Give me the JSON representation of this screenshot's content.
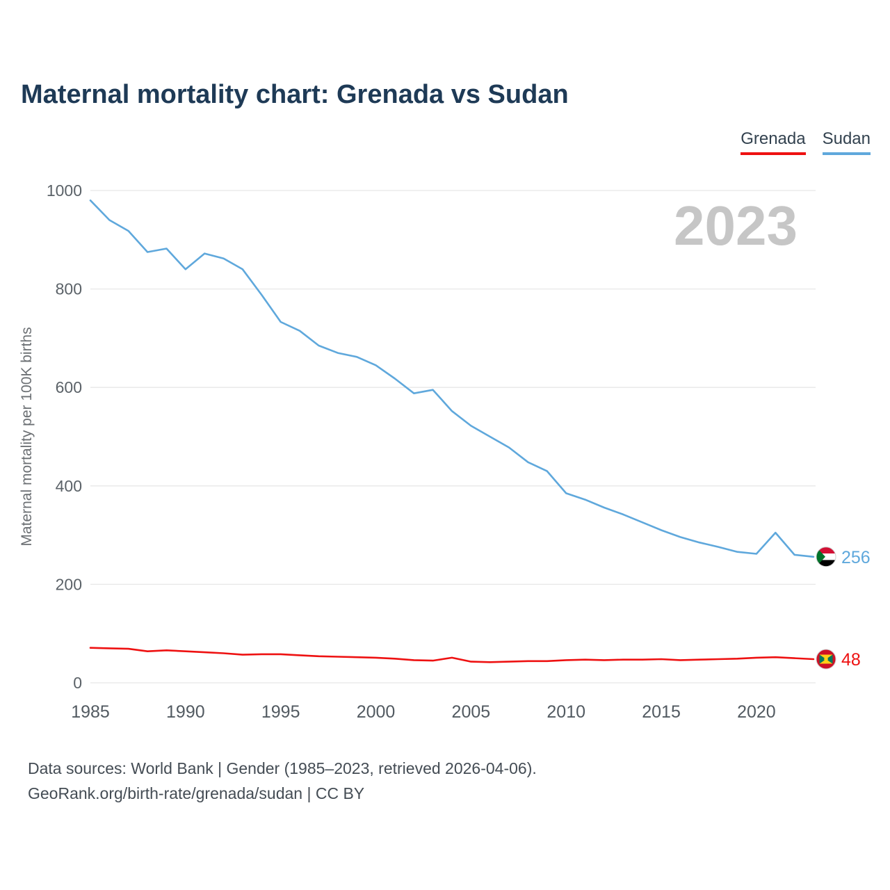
{
  "header": {
    "title": "Maternal mortality chart: Grenada vs Sudan"
  },
  "legend": [
    {
      "label": "Grenada",
      "color": "#ee1111"
    },
    {
      "label": "Sudan",
      "color": "#5fa8dc"
    }
  ],
  "watermark": "2023",
  "chart_data": {
    "type": "line",
    "title": "Maternal mortality chart: Grenada vs Sudan",
    "xlabel": "",
    "ylabel": "Maternal mortality per 100K births",
    "ylim": [
      0,
      1000
    ],
    "yticks": [
      0,
      200,
      400,
      600,
      800,
      1000
    ],
    "xticks": [
      1985,
      1990,
      1995,
      2000,
      2005,
      2010,
      2015,
      2020
    ],
    "grid": "horizontal",
    "legend_position": "top-right",
    "x": [
      1985,
      1986,
      1987,
      1988,
      1989,
      1990,
      1991,
      1992,
      1993,
      1994,
      1995,
      1996,
      1997,
      1998,
      1999,
      2000,
      2001,
      2002,
      2003,
      2004,
      2005,
      2006,
      2007,
      2008,
      2009,
      2010,
      2011,
      2012,
      2013,
      2014,
      2015,
      2016,
      2017,
      2018,
      2019,
      2020,
      2021,
      2022,
      2023
    ],
    "series": [
      {
        "name": "Grenada",
        "color": "#ee1111",
        "end_label": "48",
        "values": [
          71,
          70,
          69,
          64,
          66,
          64,
          62,
          60,
          57,
          58,
          58,
          56,
          54,
          53,
          52,
          51,
          49,
          46,
          45,
          51,
          43,
          42,
          43,
          44,
          44,
          46,
          47,
          46,
          47,
          47,
          48,
          46,
          47,
          48,
          49,
          51,
          52,
          50,
          48
        ]
      },
      {
        "name": "Sudan",
        "color": "#5fa8dc",
        "end_label": "256",
        "values": [
          980,
          940,
          918,
          875,
          882,
          840,
          872,
          862,
          840,
          788,
          733,
          715,
          685,
          670,
          662,
          645,
          618,
          588,
          595,
          552,
          522,
          500,
          478,
          448,
          430,
          385,
          372,
          356,
          342,
          326,
          310,
          296,
          285,
          276,
          266,
          262,
          305,
          260,
          256
        ]
      }
    ]
  },
  "footer": {
    "line1": "Data sources: World Bank | Gender (1985–2023, retrieved 2026-04-06).",
    "line2": "GeoRank.org/birth-rate/grenada/sudan | CC BY"
  }
}
